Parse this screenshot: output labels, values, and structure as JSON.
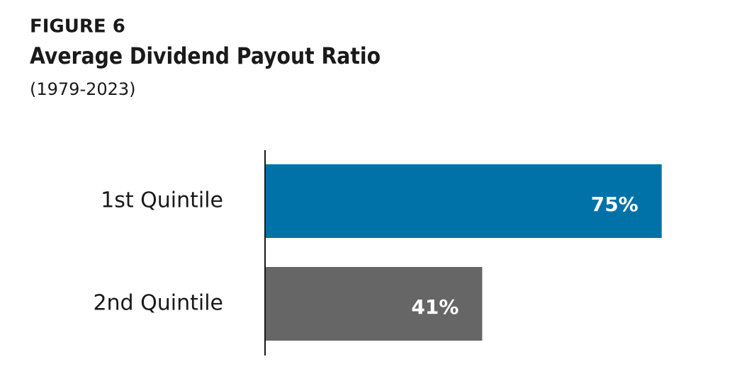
{
  "chart_data": {
    "type": "bar",
    "orientation": "horizontal",
    "figure_label": "FIGURE 6",
    "title": "Average Dividend Payout Ratio",
    "subtitle": "(1979-2023)",
    "categories": [
      "1st Quintile",
      "2nd Quintile"
    ],
    "values": [
      75,
      41
    ],
    "value_labels": [
      "75%",
      "41%"
    ],
    "colors": [
      "#0072a8",
      "#666666"
    ]
  }
}
